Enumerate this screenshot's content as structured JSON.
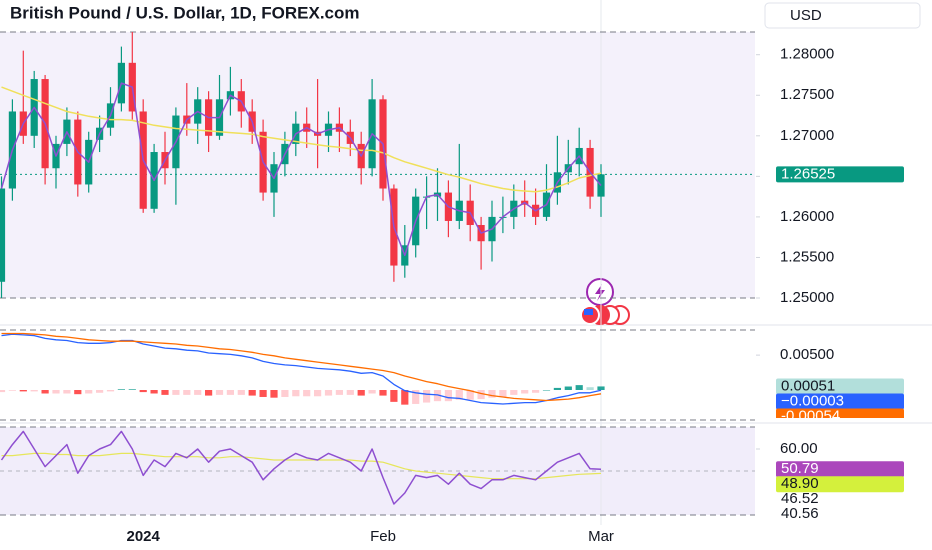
{
  "chart_data": [
    {
      "type": "candlestick",
      "title": "British Pound / U.S. Dollar, 1D, FOREX.com",
      "currency": "USD",
      "ylim": [
        1.25,
        1.2828
      ],
      "yticks": [
        {
          "value": 1.28,
          "label": "1.28000"
        },
        {
          "value": 1.275,
          "label": "1.27500"
        },
        {
          "value": 1.27,
          "label": "1.27000"
        },
        {
          "value": 1.265,
          "label": "1.26500"
        },
        {
          "value": 1.26,
          "label": "1.26000"
        },
        {
          "value": 1.255,
          "label": "1.25500"
        },
        {
          "value": 1.25,
          "label": "1.25000"
        }
      ],
      "up_color": "#089981",
      "down_color": "#f23645",
      "open": [
        1.252,
        1.2635,
        1.273,
        1.27,
        1.277,
        1.266,
        1.269,
        1.272,
        1.264,
        1.2695,
        1.271,
        1.274,
        1.279,
        1.273,
        1.261,
        1.268,
        1.266,
        1.2725,
        1.2715,
        1.2745,
        1.27,
        1.2745,
        1.2755,
        1.273,
        1.2705,
        1.263,
        1.2665,
        1.269,
        1.2715,
        1.2705,
        1.27,
        1.2715,
        1.2705,
        1.269,
        1.266,
        1.2745,
        1.2635,
        1.254,
        1.2565,
        1.2625,
        1.2625,
        1.263,
        1.2595,
        1.262,
        1.259,
        1.257,
        1.26,
        1.26,
        1.262,
        1.2615,
        1.26,
        1.263,
        1.2655,
        1.2665,
        1.2685,
        1.2625
      ],
      "high": [
        1.265,
        1.2745,
        1.2805,
        1.278,
        1.2775,
        1.27,
        1.2735,
        1.273,
        1.2705,
        1.2725,
        1.276,
        1.281,
        1.2828,
        1.2745,
        1.269,
        1.2705,
        1.2735,
        1.2765,
        1.276,
        1.2755,
        1.2775,
        1.2785,
        1.277,
        1.2745,
        1.272,
        1.268,
        1.2705,
        1.273,
        1.2735,
        1.277,
        1.273,
        1.2735,
        1.272,
        1.2705,
        1.277,
        1.275,
        1.264,
        1.259,
        1.2635,
        1.265,
        1.266,
        1.2645,
        1.269,
        1.264,
        1.26,
        1.262,
        1.2625,
        1.264,
        1.2645,
        1.2635,
        1.2665,
        1.27,
        1.2695,
        1.271,
        1.2695,
        1.2665
      ],
      "low": [
        1.25,
        1.262,
        1.269,
        1.2685,
        1.264,
        1.2635,
        1.2675,
        1.2625,
        1.263,
        1.268,
        1.27,
        1.273,
        1.272,
        1.2605,
        1.2605,
        1.264,
        1.2615,
        1.27,
        1.269,
        1.268,
        1.2695,
        1.2725,
        1.271,
        1.269,
        1.262,
        1.26,
        1.265,
        1.2675,
        1.2685,
        1.266,
        1.268,
        1.268,
        1.2675,
        1.264,
        1.265,
        1.262,
        1.252,
        1.2525,
        1.255,
        1.2585,
        1.2595,
        1.2575,
        1.2585,
        1.257,
        1.2535,
        1.2545,
        1.258,
        1.2585,
        1.26,
        1.259,
        1.2595,
        1.2615,
        1.264,
        1.265,
        1.261,
        1.26
      ],
      "close": [
        1.2635,
        1.273,
        1.27,
        1.277,
        1.266,
        1.269,
        1.272,
        1.264,
        1.2695,
        1.271,
        1.274,
        1.279,
        1.273,
        1.261,
        1.268,
        1.266,
        1.2725,
        1.2715,
        1.2745,
        1.27,
        1.2745,
        1.2755,
        1.273,
        1.2705,
        1.263,
        1.2665,
        1.269,
        1.2715,
        1.2705,
        1.27,
        1.2715,
        1.2705,
        1.269,
        1.266,
        1.2745,
        1.2635,
        1.254,
        1.2565,
        1.2625,
        1.2625,
        1.263,
        1.2595,
        1.262,
        1.259,
        1.257,
        1.26,
        1.26,
        1.262,
        1.2615,
        1.26,
        1.263,
        1.2655,
        1.2665,
        1.2685,
        1.2625,
        1.26525
      ],
      "overlays": [
        {
          "color": "#f0e05a",
          "values": [
            1.276,
            1.2755,
            1.275,
            1.2745,
            1.274,
            1.2735,
            1.273,
            1.2727,
            1.2724,
            1.2722,
            1.272,
            1.272,
            1.2719,
            1.2716,
            1.2713,
            1.2711,
            1.2709,
            1.2708,
            1.2707,
            1.2706,
            1.2705,
            1.2704,
            1.2703,
            1.2702,
            1.2699,
            1.2697,
            1.2695,
            1.2693,
            1.2691,
            1.2689,
            1.2687,
            1.2686,
            1.2684,
            1.2682,
            1.2682,
            1.2679,
            1.2673,
            1.2668,
            1.2664,
            1.266,
            1.2656,
            1.2652,
            1.2649,
            1.2645,
            1.2641,
            1.2638,
            1.2635,
            1.2633,
            1.2632,
            1.2631,
            1.2633,
            1.2637,
            1.2642,
            1.2648,
            1.2651,
            1.2654
          ]
        },
        {
          "color": "#8e4fd0",
          "values": [
            1.2635,
            1.26825,
            1.2715,
            1.2735,
            1.2715,
            1.2675,
            1.2705,
            1.268,
            1.26675,
            1.27025,
            1.2725,
            1.2765,
            1.276,
            1.267,
            1.2645,
            1.267,
            1.26925,
            1.272,
            1.273,
            1.27225,
            1.27225,
            1.275,
            1.27425,
            1.27175,
            1.26675,
            1.26475,
            1.26775,
            1.27025,
            1.271,
            1.27025,
            1.27075,
            1.271,
            1.26975,
            1.2675,
            1.27025,
            1.269,
            1.25875,
            1.25525,
            1.2595,
            1.2625,
            1.26275,
            1.26125,
            1.26075,
            1.2605,
            1.258,
            1.2585,
            1.26,
            1.261,
            1.26175,
            1.26075,
            1.2615,
            1.26425,
            1.266,
            1.2675,
            1.2655,
            1.263875
          ]
        }
      ],
      "badges": [
        {
          "value": 1.26525,
          "color": "#089981",
          "text_color": "#ffffff"
        }
      ]
    },
    {
      "type": "macd",
      "ylim": [
        -0.0043,
        0.0086
      ],
      "yticks": [
        {
          "value": 0.005,
          "label": "0.00500"
        }
      ],
      "hist_colors": [
        "#26a69a",
        "#b2dfdb",
        "#ff5252",
        "#ffcdd2"
      ],
      "histogram": [
        -0.0003,
        -0.0001,
        -0.0002,
        -0.0002,
        -0.0005,
        -0.0005,
        -0.0005,
        -0.0006,
        -0.0005,
        -0.0004,
        -0.0002,
        0.0001,
        0.0001,
        -0.0003,
        -0.0005,
        -0.0007,
        -0.0007,
        -0.0007,
        -0.0007,
        -0.0008,
        -0.0007,
        -0.0007,
        -0.0007,
        -0.0008,
        -0.001,
        -0.0011,
        -0.001,
        -0.0009,
        -0.0009,
        -0.0009,
        -0.0008,
        -0.0007,
        -0.0007,
        -0.0008,
        -0.0005,
        -0.0008,
        -0.0017,
        -0.0021,
        -0.002,
        -0.0018,
        -0.0016,
        -0.0016,
        -0.0014,
        -0.0014,
        -0.0013,
        -0.0011,
        -0.001,
        -0.0007,
        -0.0005,
        -0.0004,
        0.0,
        0.0003,
        0.0005,
        0.0007,
        0.0004,
        0.00051
      ],
      "macd": {
        "color": "#2962ff",
        "values": [
          0.0078,
          0.008,
          0.0079,
          0.0078,
          0.0074,
          0.0072,
          0.0071,
          0.0068,
          0.0067,
          0.0067,
          0.0068,
          0.0071,
          0.0071,
          0.0066,
          0.0063,
          0.006,
          0.0059,
          0.0057,
          0.0056,
          0.0053,
          0.0052,
          0.0051,
          0.0049,
          0.0046,
          0.0041,
          0.0038,
          0.0036,
          0.0035,
          0.0033,
          0.0031,
          0.003,
          0.0029,
          0.0027,
          0.0024,
          0.0025,
          0.002,
          0.0008,
          -0.0001,
          -0.0004,
          -0.0006,
          -0.0007,
          -0.0011,
          -0.0012,
          -0.0015,
          -0.0018,
          -0.0019,
          -0.002,
          -0.0019,
          -0.0018,
          -0.0018,
          -0.0015,
          -0.0011,
          -0.0008,
          -0.0004,
          -0.0004,
          -3e-05
        ]
      },
      "signal": {
        "color": "#ff6d00",
        "values": [
          0.0081,
          0.0081,
          0.0081,
          0.008,
          0.0079,
          0.0077,
          0.0076,
          0.0074,
          0.0072,
          0.0071,
          0.007,
          0.007,
          0.007,
          0.0069,
          0.0068,
          0.0067,
          0.0066,
          0.0064,
          0.0063,
          0.0061,
          0.0059,
          0.0058,
          0.0056,
          0.0054,
          0.0051,
          0.0049,
          0.0046,
          0.0044,
          0.0042,
          0.004,
          0.0038,
          0.0036,
          0.0034,
          0.0032,
          0.003,
          0.0028,
          0.0025,
          0.002,
          0.0016,
          0.0012,
          0.0009,
          0.0005,
          0.0002,
          -0.0001,
          -0.0005,
          -0.0008,
          -0.001,
          -0.0012,
          -0.0013,
          -0.0014,
          -0.0015,
          -0.0014,
          -0.0013,
          -0.0011,
          -0.0008,
          -0.00054
        ]
      },
      "badges": [
        {
          "value": 0.00051,
          "color": "#b2dfdb",
          "text_color": "#131722"
        },
        {
          "value": -3e-05,
          "label": "−0.00003",
          "color": "#2962ff",
          "text_color": "#ffffff"
        },
        {
          "value": -0.00054,
          "color": "#ff6d00",
          "text_color": "#ffffff"
        }
      ]
    },
    {
      "type": "rsi",
      "ylim": [
        30,
        70
      ],
      "yticks": [
        {
          "value": 60,
          "label": "60.00"
        }
      ],
      "categories": [
        null,
        null,
        null,
        null,
        null,
        null,
        null,
        null,
        null,
        null,
        null,
        null,
        null,
        "2024",
        null,
        null,
        null,
        null,
        null,
        null,
        null,
        null,
        null,
        null,
        null,
        null,
        null,
        null,
        null,
        null,
        null,
        null,
        null,
        null,
        null,
        "Feb",
        null,
        null,
        null,
        null,
        null,
        null,
        null,
        null,
        null,
        null,
        null,
        null,
        null,
        null,
        null,
        null,
        null,
        null,
        null,
        "Mar"
      ],
      "rsi": {
        "color": "#8e4fd0",
        "values": [
          55,
          62,
          68,
          60,
          52,
          57,
          62,
          49,
          57,
          60,
          62,
          68,
          60,
          48,
          55,
          52,
          58,
          56,
          60,
          54,
          59,
          60,
          57,
          54,
          46,
          51,
          55,
          58,
          56,
          55,
          58,
          56,
          54,
          50,
          60,
          47,
          35,
          40,
          48,
          47,
          48,
          44,
          49,
          44,
          42,
          46,
          46,
          48,
          47,
          46,
          50,
          54,
          56,
          58,
          51,
          50.79
        ]
      },
      "rsi_ma": {
        "color": "#e6e65a",
        "values": [
          57,
          57,
          57.5,
          58,
          58,
          57.5,
          57.5,
          57,
          57,
          57,
          57.5,
          58,
          58,
          57.5,
          57,
          56.5,
          56.5,
          56.5,
          56.5,
          56,
          56,
          56.5,
          56.5,
          56,
          55.5,
          55,
          55,
          55,
          55,
          55,
          55,
          55,
          55,
          54.5,
          54.5,
          54,
          52.5,
          51,
          50,
          49.5,
          49,
          48.5,
          48,
          47.5,
          47,
          46.5,
          46.5,
          46.5,
          46.5,
          46.5,
          47,
          47.5,
          48,
          48.5,
          48.7,
          48.9
        ]
      },
      "badges": [
        {
          "value": 50.79,
          "color": "#ab47bc",
          "text_color": "#ffffff"
        },
        {
          "value": 48.9,
          "label": "48.90",
          "color": "#d4f03c",
          "text_color": "#131722"
        },
        {
          "value": 46.52,
          "text_color": "#131722"
        },
        {
          "value": 40.56,
          "text_color": "#131722"
        }
      ]
    }
  ]
}
